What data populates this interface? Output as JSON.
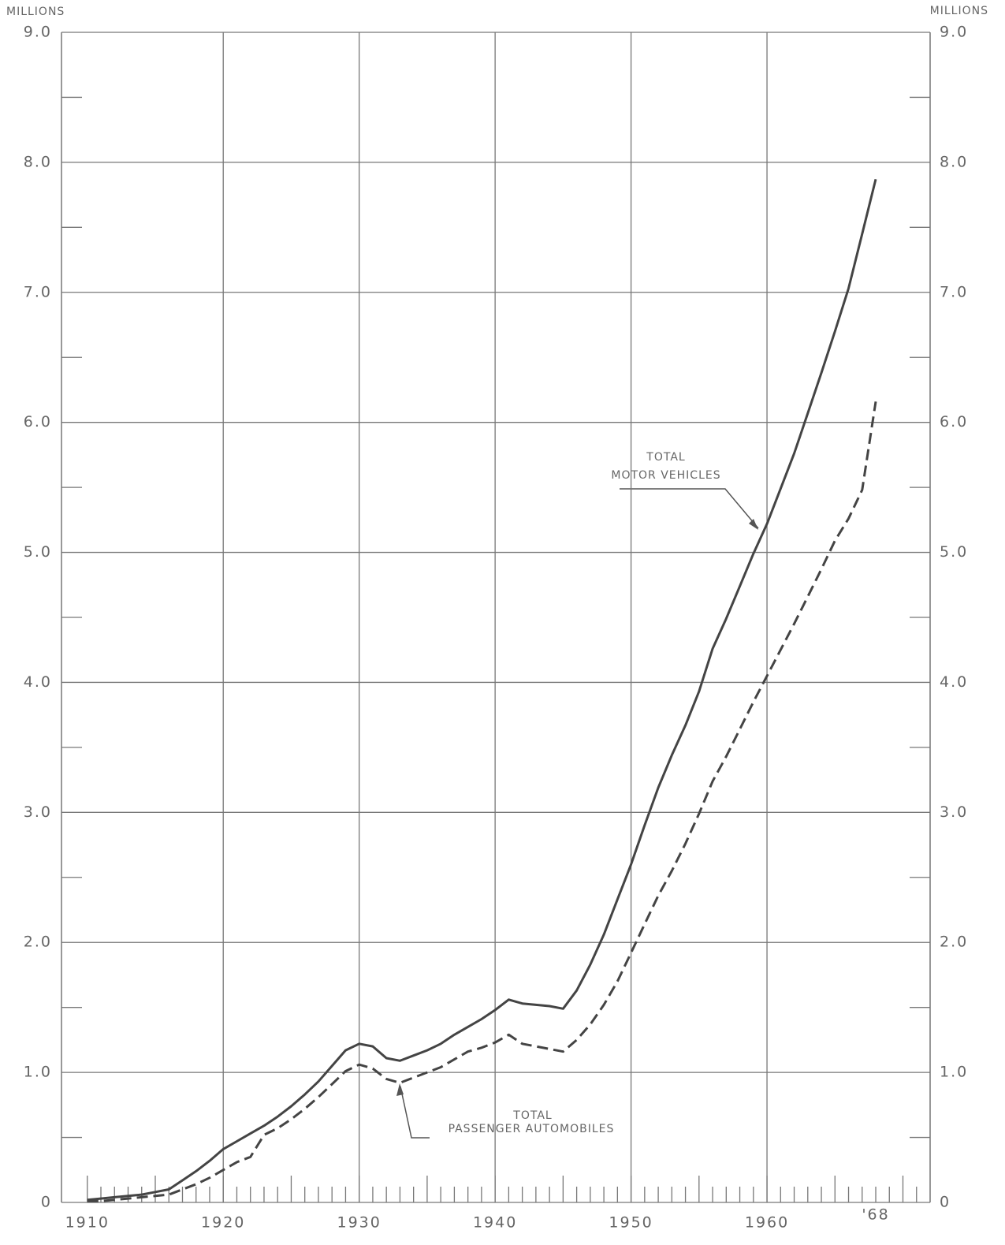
{
  "chart_data": {
    "type": "line",
    "y_label_left": "MILLIONS",
    "y_label_right": "MILLIONS",
    "x": [
      1910,
      1911,
      1912,
      1913,
      1914,
      1915,
      1916,
      1917,
      1918,
      1919,
      1920,
      1921,
      1922,
      1923,
      1924,
      1925,
      1926,
      1927,
      1928,
      1929,
      1930,
      1931,
      1932,
      1933,
      1934,
      1935,
      1936,
      1937,
      1938,
      1939,
      1940,
      1941,
      1942,
      1943,
      1944,
      1945,
      1946,
      1947,
      1948,
      1949,
      1950,
      1951,
      1952,
      1953,
      1954,
      1955,
      1956,
      1957,
      1958,
      1959,
      1960,
      1961,
      1962,
      1963,
      1964,
      1965,
      1966,
      1967,
      1968
    ],
    "series": [
      {
        "name": "TOTAL MOTOR VEHICLES",
        "color": "#444444",
        "dash": false,
        "values": [
          0.02,
          0.03,
          0.04,
          0.05,
          0.06,
          0.08,
          0.1,
          0.17,
          0.24,
          0.32,
          0.41,
          0.47,
          0.53,
          0.59,
          0.66,
          0.74,
          0.83,
          0.93,
          1.05,
          1.17,
          1.22,
          1.2,
          1.11,
          1.09,
          1.13,
          1.17,
          1.22,
          1.29,
          1.35,
          1.41,
          1.48,
          1.56,
          1.53,
          1.52,
          1.51,
          1.49,
          1.63,
          1.83,
          2.06,
          2.33,
          2.6,
          2.9,
          3.19,
          3.44,
          3.67,
          3.93,
          4.26,
          4.49,
          4.74,
          4.99,
          5.22,
          5.49,
          5.76,
          6.07,
          6.38,
          6.7,
          7.03,
          7.45,
          7.87
        ]
      },
      {
        "name": "TOTAL PASSENGER AUTOMOBILES",
        "color": "#444444",
        "dash": true,
        "values": [
          0.01,
          0.01,
          0.02,
          0.03,
          0.04,
          0.05,
          0.06,
          0.1,
          0.14,
          0.19,
          0.25,
          0.31,
          0.35,
          0.52,
          0.57,
          0.64,
          0.72,
          0.81,
          0.91,
          1.01,
          1.06,
          1.03,
          0.95,
          0.92,
          0.96,
          1.0,
          1.04,
          1.1,
          1.16,
          1.19,
          1.23,
          1.29,
          1.22,
          1.2,
          1.18,
          1.16,
          1.25,
          1.37,
          1.52,
          1.7,
          1.92,
          2.14,
          2.36,
          2.55,
          2.76,
          2.99,
          3.24,
          3.43,
          3.64,
          3.85,
          4.05,
          4.25,
          4.45,
          4.66,
          4.87,
          5.09,
          5.26,
          5.48,
          6.16
        ]
      }
    ],
    "annotations": [
      {
        "lines": [
          "TOTAL",
          "MOTOR VEHICLES"
        ]
      },
      {
        "lines": [
          "TOTAL",
          "PASSENGER AUTOMOBILES"
        ]
      }
    ],
    "xlim": [
      1908.1,
      1972
    ],
    "ylim": [
      0,
      9
    ],
    "xticks": [
      1910,
      1920,
      1930,
      1940,
      1950,
      1960,
      {
        "value": 1968,
        "label": "'68"
      }
    ],
    "xgrid": [
      1920,
      1930,
      1940,
      1950,
      1960
    ],
    "xminorticks": [
      1910,
      1911,
      1912,
      1913,
      1914,
      1915,
      1916,
      1917,
      1918,
      1919,
      1920,
      1921,
      1922,
      1923,
      1924,
      1925,
      1926,
      1927,
      1928,
      1929,
      1930,
      1931,
      1932,
      1933,
      1934,
      1935,
      1936,
      1937,
      1938,
      1939,
      1940,
      1941,
      1942,
      1943,
      1944,
      1945,
      1946,
      1947,
      1948,
      1949,
      1950,
      1951,
      1952,
      1953,
      1954,
      1955,
      1956,
      1957,
      1958,
      1959,
      1960,
      1961,
      1962,
      1963,
      1964,
      1965,
      1966,
      1967,
      1968,
      1969,
      1970,
      1971
    ],
    "yticks": [
      0,
      {
        "value": 1,
        "label": "1.0"
      },
      {
        "value": 2,
        "label": "2.0"
      },
      {
        "value": 3,
        "label": "3.0"
      },
      {
        "value": 4,
        "label": "4.0"
      },
      {
        "value": 5,
        "label": "5.0"
      },
      {
        "value": 6,
        "label": "6.0"
      },
      {
        "value": 7,
        "label": "7.0"
      },
      {
        "value": 8,
        "label": "8.0"
      },
      {
        "value": 9,
        "label": "9.0"
      }
    ],
    "yminorticks": [
      0.5,
      1.5,
      2.5,
      3.5,
      4.5,
      5.5,
      6.5,
      7.5,
      8.5
    ],
    "grid": true
  }
}
